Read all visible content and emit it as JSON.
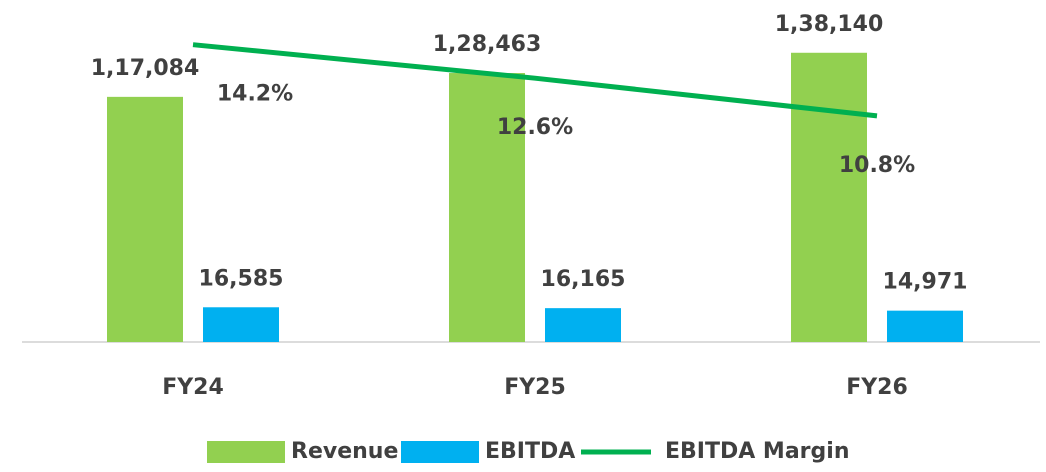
{
  "chart_data": {
    "type": "bar_line",
    "categories": [
      "FY24",
      "FY25",
      "FY26"
    ],
    "series": [
      {
        "name": "Revenue",
        "type": "bar",
        "color": "#92d050",
        "values": [
          117084,
          128463,
          138140
        ],
        "value_labels": [
          "1,17,084",
          "1,28,463",
          "1,38,140"
        ]
      },
      {
        "name": "EBITDA",
        "type": "bar",
        "color": "#00b0f0",
        "values": [
          16585,
          16165,
          14971
        ],
        "value_labels": [
          "16,585",
          "16,165",
          "14,971"
        ]
      },
      {
        "name": "EBITDA Margin",
        "type": "line",
        "axis": "y2",
        "color": "#00b050",
        "values": [
          14.2,
          12.6,
          10.8
        ],
        "value_labels": [
          "14.2%",
          "12.6%",
          "10.8%"
        ]
      }
    ],
    "ylim": [
      0,
      160000
    ],
    "y2lim": [
      0,
      16
    ],
    "legend": "bottom"
  }
}
